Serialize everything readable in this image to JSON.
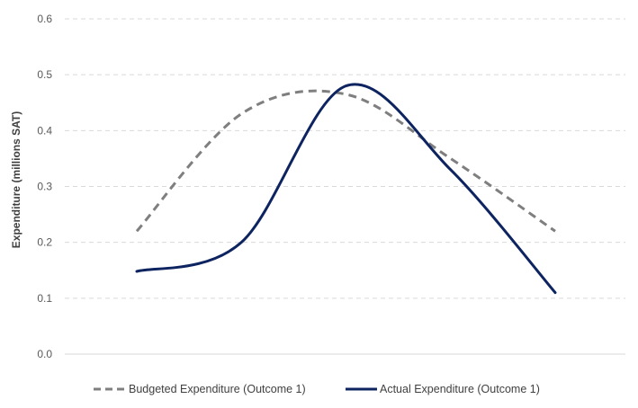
{
  "chart_data": {
    "type": "line",
    "title": "",
    "xlabel": "",
    "ylabel": "Expenditure (millions SAT)",
    "ylim": [
      0,
      0.6
    ],
    "yticks": [
      0.0,
      0.1,
      0.2,
      0.3,
      0.4,
      0.5,
      0.6
    ],
    "ytick_labels": [
      "0.0",
      "0.1",
      "0.2",
      "0.3",
      "0.4",
      "0.5",
      "0.6"
    ],
    "x_labels_shown": false,
    "x": [
      1,
      2,
      3,
      4,
      5
    ],
    "grid": "horizontal dashed",
    "legend_position": "bottom",
    "series": [
      {
        "name": "Budgeted Expenditure (Outcome 1)",
        "values": [
          0.22,
          0.43,
          0.465,
          0.35,
          0.22
        ],
        "color": "#7f7f7f",
        "style": "dashed"
      },
      {
        "name": "Actual Expenditure (Outcome 1)",
        "values": [
          0.148,
          0.2,
          0.48,
          0.33,
          0.11
        ],
        "color": "#0d2461",
        "style": "solid"
      }
    ]
  }
}
